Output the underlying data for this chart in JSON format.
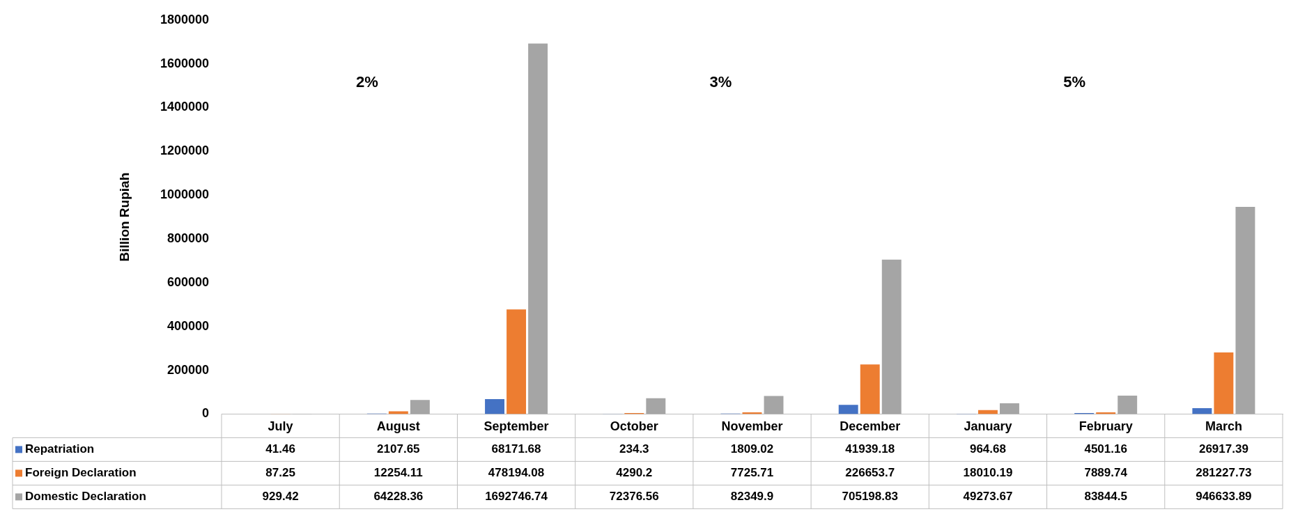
{
  "chart_data": {
    "type": "bar",
    "ylabel": "Billion Rupiah",
    "categories": [
      "July",
      "August",
      "September",
      "October",
      "November",
      "December",
      "January",
      "February",
      "March"
    ],
    "series": [
      {
        "name": "Repatriation",
        "color": "#4472c4",
        "values": [
          41.46,
          2107.65,
          68171.68,
          234.3,
          1809.02,
          41939.18,
          964.68,
          4501.16,
          26917.39
        ]
      },
      {
        "name": "Foreign Declaration",
        "color": "#ed7d31",
        "values": [
          87.25,
          12254.11,
          478194.08,
          4290.2,
          7725.71,
          226653.7,
          18010.19,
          7889.74,
          281227.73
        ]
      },
      {
        "name": "Domestic Declaration",
        "color": "#a5a5a5",
        "values": [
          929.42,
          64228.36,
          1692746.74,
          72376.56,
          82349.9,
          705198.83,
          49273.67,
          83844.5,
          946633.89
        ]
      }
    ],
    "ylim": [
      0,
      1800000
    ],
    "yticks": [
      0,
      200000,
      400000,
      600000,
      800000,
      1000000,
      1200000,
      1400000,
      1600000,
      1800000
    ],
    "grid": false,
    "legend": "bottom",
    "data_labels": true,
    "annotations": [
      "2%",
      "3%",
      "5%"
    ]
  }
}
